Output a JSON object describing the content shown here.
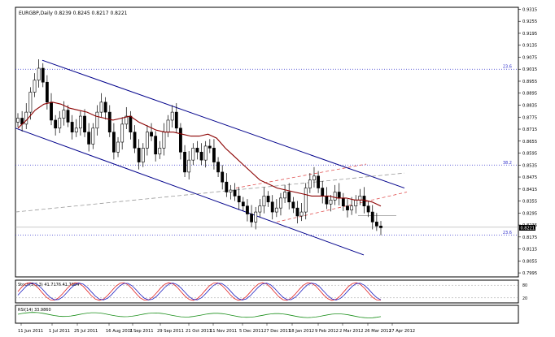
{
  "window": {
    "title": "EURGBP,Daily",
    "ohlc": "0.8239 0.8245 0.8217 0.8221"
  },
  "chart_data": {
    "type": "candlestick",
    "symbol": "EURGBP",
    "timeframe": "Daily",
    "ylim": [
      0.7975,
      0.9325
    ],
    "y_ticks": [
      "0.9315",
      "0.9255",
      "0.9195",
      "0.9135",
      "0.9075",
      "0.9015",
      "0.8955",
      "0.8895",
      "0.8835",
      "0.8775",
      "0.8715",
      "0.8655",
      "0.8595",
      "0.8535",
      "0.8475",
      "0.8415",
      "0.8355",
      "0.8295",
      "0.8235",
      "0.8175",
      "0.8115",
      "0.8055",
      "0.7995"
    ],
    "x_ticks": [
      "11 Jun 2011",
      "1 Jul 2011",
      "25 Jul 2011",
      "16 Aug 2011",
      "7 Sep 2011",
      "29 Sep 2011",
      "21 Oct 2011",
      "11 Nov 2011",
      "5 Dec 2011",
      "27 Dec 2011",
      "18 Jan 2012",
      "9 Feb 2012",
      "2 Mar 2012",
      "26 Mar 2012",
      "17 Apr 2012"
    ],
    "last_price": "0.8221",
    "fib_levels": [
      {
        "label": "23.6",
        "value": 0.9015
      },
      {
        "label": "38.2",
        "value": 0.8535
      },
      {
        "label": "23.6",
        "value": 0.8185
      }
    ],
    "close_series": [
      0.877,
      0.874,
      0.88,
      0.89,
      0.896,
      0.902,
      0.895,
      0.885,
      0.876,
      0.872,
      0.877,
      0.881,
      0.875,
      0.87,
      0.872,
      0.878,
      0.87,
      0.864,
      0.872,
      0.88,
      0.885,
      0.88,
      0.87,
      0.86,
      0.865,
      0.874,
      0.878,
      0.87,
      0.862,
      0.855,
      0.862,
      0.87,
      0.868,
      0.859,
      0.862,
      0.87,
      0.876,
      0.88,
      0.872,
      0.86,
      0.85,
      0.856,
      0.862,
      0.86,
      0.856,
      0.863,
      0.862,
      0.855,
      0.85,
      0.845,
      0.84,
      0.841,
      0.838,
      0.835,
      0.833,
      0.829,
      0.825,
      0.83,
      0.833,
      0.838,
      0.835,
      0.83,
      0.832,
      0.837,
      0.84,
      0.835,
      0.832,
      0.828,
      0.83,
      0.842,
      0.846,
      0.848,
      0.842,
      0.838,
      0.834,
      0.836,
      0.84,
      0.837,
      0.833,
      0.831,
      0.833,
      0.836,
      0.838,
      0.833,
      0.83,
      0.825,
      0.823,
      0.8221
    ],
    "ma_series": [
      0.872,
      0.876,
      0.881,
      0.884,
      0.885,
      0.884,
      0.882,
      0.881,
      0.88,
      0.878,
      0.877,
      0.876,
      0.877,
      0.878,
      0.875,
      0.873,
      0.871,
      0.87,
      0.87,
      0.869,
      0.868,
      0.868,
      0.869,
      0.867,
      0.862,
      0.858,
      0.854,
      0.85,
      0.846,
      0.844,
      0.842,
      0.841,
      0.84,
      0.839,
      0.838,
      0.838,
      0.838,
      0.837,
      0.837,
      0.836,
      0.836,
      0.835,
      0.833
    ],
    "stochastic": {
      "label": "Stoch(5,3,3) 41.7176 41.7984",
      "levels": [
        20,
        80
      ],
      "range": [
        0,
        100
      ]
    },
    "rsi": {
      "label": "RSI(14) 33.9860",
      "range": [
        0,
        100
      ]
    }
  }
}
